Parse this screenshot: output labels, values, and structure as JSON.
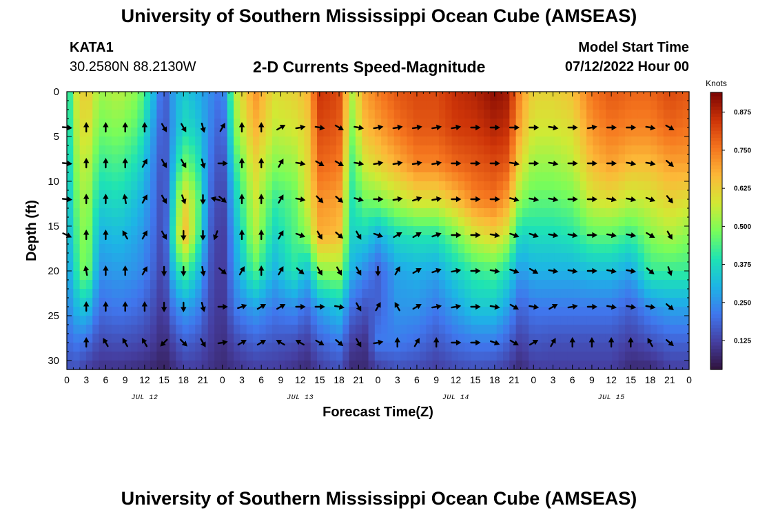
{
  "header": {
    "title": "University of Southern Mississippi Ocean Cube (AMSEAS)",
    "station_id": "KATA1",
    "station_coords": "30.2580N  88.2130W",
    "subtitle": "2-D Currents Speed-Magnitude",
    "start_label": "Model Start Time",
    "start_value": "07/12/2022 Hour 00"
  },
  "footer": {
    "title": "University of Southern Mississippi Ocean Cube (AMSEAS)"
  },
  "chart_data": {
    "type": "heatmap",
    "title": "2-D Currents Speed-Magnitude",
    "xlabel": "Forecast Time(Z)",
    "ylabel": "Depth (ft)",
    "x_ticks": [
      "0",
      "3",
      "6",
      "9",
      "12",
      "15",
      "18",
      "21",
      "0",
      "3",
      "6",
      "9",
      "12",
      "15",
      "18",
      "21",
      "0",
      "3",
      "6",
      "9",
      "12",
      "15",
      "18",
      "21",
      "0",
      "3",
      "6",
      "9",
      "12",
      "15",
      "18",
      "21",
      "0"
    ],
    "x_range_hours": [
      0,
      96
    ],
    "day_labels": [
      {
        "label": "JUL 12",
        "hour": 12
      },
      {
        "label": "JUL 13",
        "hour": 36
      },
      {
        "label": "JUL 14",
        "hour": 60
      },
      {
        "label": "JUL 15",
        "hour": 84
      }
    ],
    "y_ticks": [
      0,
      5,
      10,
      15,
      20,
      25,
      30
    ],
    "y_range": [
      0,
      31
    ],
    "y_inverted": true,
    "colorbar": {
      "label": "Knots",
      "ticks": [
        "0.125",
        "0.250",
        "0.375",
        "0.500",
        "0.625",
        "0.750",
        "0.875"
      ],
      "range": [
        0.03,
        0.94
      ]
    },
    "speed_profiles": [
      {
        "h": 0,
        "s": [
          0.3,
          0.3,
          0.29,
          0.28,
          0.27,
          0.25,
          0.22,
          0.18,
          0.14
        ]
      },
      {
        "h": 1,
        "s": [
          0.55,
          0.52,
          0.48,
          0.44,
          0.4,
          0.36,
          0.3,
          0.22,
          0.16
        ]
      },
      {
        "h": 3,
        "s": [
          0.65,
          0.62,
          0.58,
          0.55,
          0.53,
          0.52,
          0.35,
          0.2,
          0.12
        ]
      },
      {
        "h": 5,
        "s": [
          0.52,
          0.48,
          0.42,
          0.36,
          0.3,
          0.25,
          0.2,
          0.14,
          0.1
        ]
      },
      {
        "h": 8,
        "s": [
          0.55,
          0.5,
          0.44,
          0.38,
          0.32,
          0.27,
          0.22,
          0.15,
          0.1
        ]
      },
      {
        "h": 11,
        "s": [
          0.5,
          0.45,
          0.38,
          0.32,
          0.28,
          0.25,
          0.2,
          0.14,
          0.09
        ]
      },
      {
        "h": 13,
        "s": [
          0.35,
          0.3,
          0.26,
          0.24,
          0.22,
          0.2,
          0.16,
          0.12,
          0.08
        ]
      },
      {
        "h": 15,
        "s": [
          0.15,
          0.14,
          0.13,
          0.12,
          0.12,
          0.11,
          0.1,
          0.08,
          0.06
        ]
      },
      {
        "h": 16,
        "s": [
          0.25,
          0.24,
          0.26,
          0.3,
          0.33,
          0.28,
          0.2,
          0.12,
          0.08
        ]
      },
      {
        "h": 18,
        "s": [
          0.35,
          0.38,
          0.48,
          0.62,
          0.68,
          0.45,
          0.28,
          0.18,
          0.12
        ]
      },
      {
        "h": 20,
        "s": [
          0.3,
          0.35,
          0.42,
          0.5,
          0.48,
          0.35,
          0.25,
          0.16,
          0.12
        ]
      },
      {
        "h": 22,
        "s": [
          0.25,
          0.24,
          0.22,
          0.2,
          0.18,
          0.16,
          0.14,
          0.12,
          0.1
        ]
      },
      {
        "h": 24,
        "s": [
          0.2,
          0.16,
          0.13,
          0.11,
          0.1,
          0.1,
          0.1,
          0.09,
          0.08
        ]
      },
      {
        "h": 26,
        "s": [
          0.55,
          0.5,
          0.42,
          0.35,
          0.3,
          0.27,
          0.22,
          0.14,
          0.1
        ]
      },
      {
        "h": 29,
        "s": [
          0.72,
          0.68,
          0.62,
          0.58,
          0.55,
          0.45,
          0.28,
          0.18,
          0.12
        ]
      },
      {
        "h": 32,
        "s": [
          0.6,
          0.56,
          0.5,
          0.42,
          0.36,
          0.3,
          0.22,
          0.16,
          0.12
        ]
      },
      {
        "h": 35,
        "s": [
          0.62,
          0.58,
          0.52,
          0.46,
          0.44,
          0.4,
          0.25,
          0.15,
          0.1
        ]
      },
      {
        "h": 37,
        "s": [
          0.66,
          0.62,
          0.6,
          0.58,
          0.5,
          0.32,
          0.2,
          0.12,
          0.08
        ]
      },
      {
        "h": 39,
        "s": [
          0.85,
          0.82,
          0.78,
          0.72,
          0.68,
          0.5,
          0.28,
          0.18,
          0.12
        ]
      },
      {
        "h": 42,
        "s": [
          0.82,
          0.8,
          0.76,
          0.7,
          0.66,
          0.52,
          0.34,
          0.22,
          0.15
        ]
      },
      {
        "h": 44,
        "s": [
          0.55,
          0.5,
          0.44,
          0.4,
          0.36,
          0.3,
          0.2,
          0.12,
          0.08
        ]
      },
      {
        "h": 46,
        "s": [
          0.7,
          0.66,
          0.58,
          0.48,
          0.36,
          0.24,
          0.16,
          0.1,
          0.08
        ]
      },
      {
        "h": 48,
        "s": [
          0.75,
          0.7,
          0.62,
          0.5,
          0.3,
          0.18,
          0.18,
          0.22,
          0.12
        ]
      },
      {
        "h": 51,
        "s": [
          0.8,
          0.76,
          0.68,
          0.55,
          0.38,
          0.28,
          0.26,
          0.22,
          0.15
        ]
      },
      {
        "h": 54,
        "s": [
          0.82,
          0.8,
          0.74,
          0.6,
          0.4,
          0.3,
          0.26,
          0.2,
          0.14
        ]
      },
      {
        "h": 57,
        "s": [
          0.82,
          0.8,
          0.74,
          0.6,
          0.4,
          0.28,
          0.22,
          0.16,
          0.12
        ]
      },
      {
        "h": 60,
        "s": [
          0.86,
          0.84,
          0.78,
          0.66,
          0.48,
          0.36,
          0.28,
          0.2,
          0.14
        ]
      },
      {
        "h": 63,
        "s": [
          0.88,
          0.85,
          0.8,
          0.74,
          0.58,
          0.42,
          0.34,
          0.22,
          0.15
        ]
      },
      {
        "h": 66,
        "s": [
          0.92,
          0.88,
          0.82,
          0.76,
          0.62,
          0.44,
          0.34,
          0.22,
          0.14
        ]
      },
      {
        "h": 68,
        "s": [
          0.9,
          0.86,
          0.8,
          0.7,
          0.56,
          0.38,
          0.28,
          0.18,
          0.12
        ]
      },
      {
        "h": 70,
        "s": [
          0.72,
          0.68,
          0.6,
          0.5,
          0.36,
          0.26,
          0.18,
          0.12,
          0.08
        ]
      },
      {
        "h": 72,
        "s": [
          0.62,
          0.58,
          0.52,
          0.46,
          0.38,
          0.3,
          0.22,
          0.16,
          0.12
        ]
      },
      {
        "h": 75,
        "s": [
          0.62,
          0.58,
          0.52,
          0.46,
          0.38,
          0.3,
          0.22,
          0.15,
          0.12
        ]
      },
      {
        "h": 78,
        "s": [
          0.65,
          0.6,
          0.55,
          0.48,
          0.4,
          0.3,
          0.22,
          0.15,
          0.12
        ]
      },
      {
        "h": 81,
        "s": [
          0.76,
          0.72,
          0.66,
          0.58,
          0.46,
          0.32,
          0.22,
          0.15,
          0.12
        ]
      },
      {
        "h": 84,
        "s": [
          0.8,
          0.76,
          0.7,
          0.6,
          0.46,
          0.32,
          0.22,
          0.15,
          0.12
        ]
      },
      {
        "h": 87,
        "s": [
          0.78,
          0.74,
          0.66,
          0.56,
          0.42,
          0.28,
          0.18,
          0.12,
          0.08
        ]
      },
      {
        "h": 90,
        "s": [
          0.78,
          0.74,
          0.66,
          0.58,
          0.5,
          0.42,
          0.25,
          0.15,
          0.08
        ]
      },
      {
        "h": 93,
        "s": [
          0.82,
          0.78,
          0.7,
          0.62,
          0.54,
          0.42,
          0.28,
          0.18,
          0.12
        ]
      },
      {
        "h": 96,
        "s": [
          0.8,
          0.76,
          0.7,
          0.6,
          0.5,
          0.42,
          0.28,
          0.18,
          0.12
        ]
      }
    ],
    "profile_depths": [
      0,
      4,
      8,
      12,
      16,
      20,
      24,
      28,
      31
    ],
    "vector_depths": [
      4,
      8,
      12,
      16,
      20,
      24,
      28
    ],
    "vectors": [
      {
        "h": 0,
        "dirs": [
          95,
          95,
          95,
          115,
          null,
          null,
          null
        ]
      },
      {
        "h": 3,
        "dirs": [
          0,
          0,
          0,
          0,
          350,
          0,
          0
        ]
      },
      {
        "h": 6,
        "dirs": [
          0,
          0,
          0,
          0,
          0,
          0,
          330
        ]
      },
      {
        "h": 9,
        "dirs": [
          0,
          0,
          350,
          330,
          0,
          0,
          330
        ]
      },
      {
        "h": 12,
        "dirs": [
          0,
          30,
          30,
          30,
          30,
          0,
          330
        ]
      },
      {
        "h": 15,
        "dirs": [
          150,
          150,
          150,
          150,
          180,
          180,
          225
        ]
      },
      {
        "h": 18,
        "dirs": [
          150,
          150,
          160,
          180,
          180,
          180,
          135
        ]
      },
      {
        "h": 21,
        "dirs": [
          165,
          165,
          180,
          180,
          170,
          165,
          150
        ]
      },
      {
        "h": 23,
        "dirs": [
          null,
          null,
          285,
          200,
          null,
          null,
          null
        ]
      },
      {
        "h": 24,
        "dirs": [
          30,
          90,
          130,
          null,
          130,
          90,
          80
        ]
      },
      {
        "h": 27,
        "dirs": [
          0,
          0,
          0,
          0,
          30,
          70,
          60
        ]
      },
      {
        "h": 30,
        "dirs": [
          0,
          0,
          0,
          0,
          0,
          60,
          60
        ]
      },
      {
        "h": 33,
        "dirs": [
          60,
          30,
          30,
          30,
          30,
          60,
          300
        ]
      },
      {
        "h": 36,
        "dirs": [
          80,
          100,
          100,
          110,
          130,
          90,
          300
        ]
      },
      {
        "h": 39,
        "dirs": [
          100,
          120,
          135,
          150,
          150,
          90,
          120
        ]
      },
      {
        "h": 42,
        "dirs": [
          120,
          120,
          130,
          130,
          150,
          100,
          130
        ]
      },
      {
        "h": 45,
        "dirs": [
          100,
          100,
          105,
          150,
          150,
          150,
          150
        ]
      },
      {
        "h": 48,
        "dirs": [
          80,
          80,
          90,
          110,
          180,
          30,
          80
        ]
      },
      {
        "h": 51,
        "dirs": [
          80,
          80,
          80,
          60,
          30,
          330,
          0
        ]
      },
      {
        "h": 54,
        "dirs": [
          80,
          80,
          70,
          60,
          60,
          60,
          30
        ]
      },
      {
        "h": 57,
        "dirs": [
          80,
          80,
          80,
          70,
          70,
          80,
          0
        ]
      },
      {
        "h": 60,
        "dirs": [
          80,
          90,
          90,
          90,
          80,
          80,
          90
        ]
      },
      {
        "h": 63,
        "dirs": [
          90,
          90,
          90,
          90,
          90,
          90,
          90
        ]
      },
      {
        "h": 66,
        "dirs": [
          90,
          90,
          90,
          100,
          100,
          100,
          110
        ]
      },
      {
        "h": 69,
        "dirs": [
          90,
          100,
          105,
          110,
          110,
          120,
          120
        ]
      },
      {
        "h": 72,
        "dirs": [
          90,
          90,
          100,
          110,
          120,
          100,
          60
        ]
      },
      {
        "h": 75,
        "dirs": [
          100,
          100,
          100,
          100,
          100,
          60,
          30
        ]
      },
      {
        "h": 78,
        "dirs": [
          90,
          90,
          90,
          100,
          100,
          80,
          0
        ]
      },
      {
        "h": 81,
        "dirs": [
          80,
          90,
          90,
          90,
          90,
          90,
          0
        ]
      },
      {
        "h": 84,
        "dirs": [
          90,
          90,
          100,
          100,
          100,
          100,
          0
        ]
      },
      {
        "h": 87,
        "dirs": [
          90,
          100,
          100,
          100,
          100,
          100,
          0
        ]
      },
      {
        "h": 90,
        "dirs": [
          100,
          100,
          110,
          120,
          130,
          100,
          330
        ]
      },
      {
        "h": 93,
        "dirs": [
          120,
          130,
          140,
          150,
          160,
          130,
          130
        ]
      }
    ]
  }
}
